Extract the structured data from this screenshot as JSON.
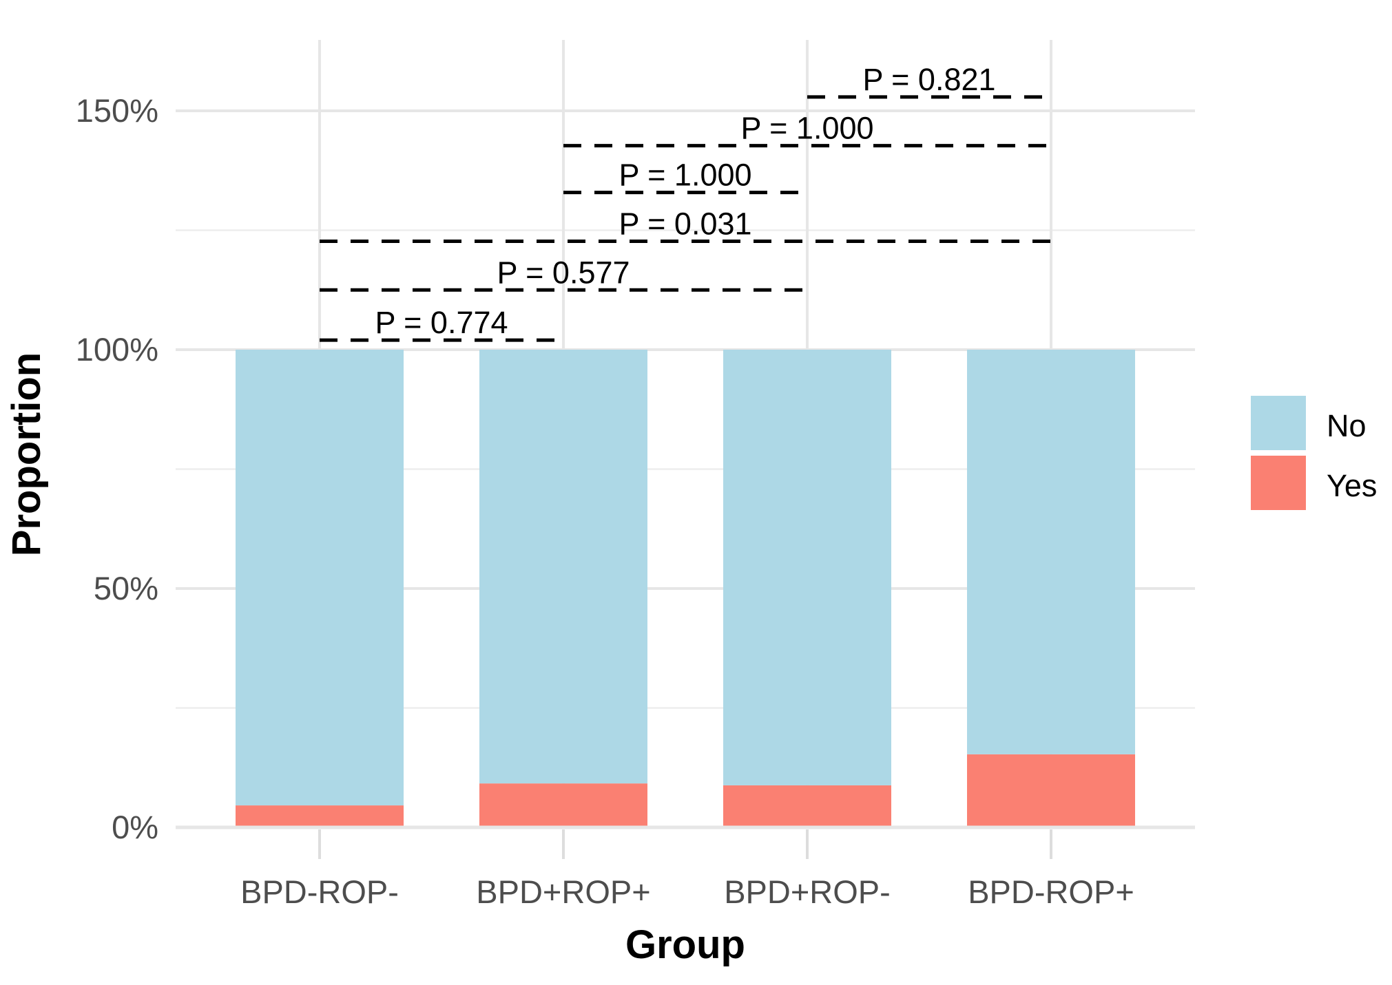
{
  "chart_data": {
    "type": "bar",
    "subtype": "stacked-proportion",
    "title": "",
    "xlabel": "Group",
    "ylabel": "Proportion",
    "categories": [
      "BPD-ROP-",
      "BPD+ROP+",
      "BPD+ROP-",
      "BPD-ROP+"
    ],
    "series": [
      {
        "name": "No",
        "color": "#ADD8E6",
        "values": [
          0.954,
          0.908,
          0.912,
          0.847
        ]
      },
      {
        "name": "Yes",
        "color": "#FA8072",
        "values": [
          0.046,
          0.092,
          0.088,
          0.153
        ]
      }
    ],
    "stack_order_bottom_to_top": [
      "Yes",
      "No"
    ],
    "y_axis": {
      "format": "percent",
      "range": [
        0,
        1.648
      ],
      "major_ticks": [
        {
          "value": 0,
          "label": "0%"
        },
        {
          "value": 0.5,
          "label": "50%"
        },
        {
          "value": 1.0,
          "label": "100%"
        },
        {
          "value": 1.5,
          "label": "150%"
        }
      ],
      "minor_ticks": [
        0.25,
        0.75,
        1.25
      ]
    },
    "grid": true,
    "legend": {
      "position": "right",
      "entries": [
        {
          "label": "No",
          "color": "#ADD8E6"
        },
        {
          "label": "Yes",
          "color": "#FA8072"
        }
      ]
    },
    "annotations": {
      "style": "dashed-horizontal-bracket",
      "comparisons": [
        {
          "between": [
            "BPD-ROP-",
            "BPD+ROP+"
          ],
          "label": "P = 0.774",
          "level": 1.02
        },
        {
          "between": [
            "BPD-ROP-",
            "BPD+ROP-"
          ],
          "label": "P = 0.577",
          "level": 1.125
        },
        {
          "between": [
            "BPD-ROP-",
            "BPD-ROP+"
          ],
          "label": "P = 0.031",
          "level": 1.227
        },
        {
          "between": [
            "BPD+ROP+",
            "BPD+ROP-"
          ],
          "label": "P = 1.000",
          "level": 1.329
        },
        {
          "between": [
            "BPD+ROP+",
            "BPD-ROP+"
          ],
          "label": "P = 1.000",
          "level": 1.427
        },
        {
          "between": [
            "BPD+ROP-",
            "BPD-ROP+"
          ],
          "label": "P = 0.821",
          "level": 1.529
        }
      ]
    },
    "colors": {
      "background": "#FFFFFF",
      "grid_major": "#E6E6E6",
      "grid_minor": "#EDEDED",
      "axis_tick": "#DDDDDD",
      "axis_text": "#4D4D4D",
      "annotation": "#000000"
    }
  }
}
